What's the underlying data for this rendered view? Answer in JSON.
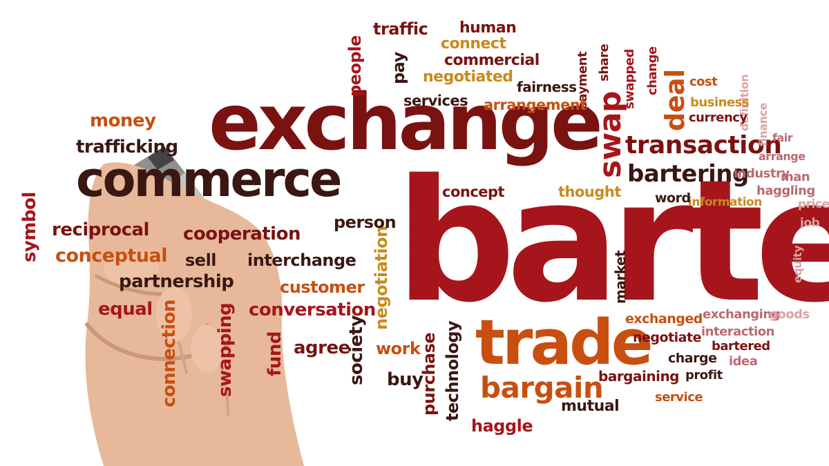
{
  "palette": {
    "dark": "#3a1712",
    "maroon": "#7a1212",
    "red": "#a6151b",
    "orange": "#c84f10",
    "amber": "#c98a1c",
    "rose": "#b86a72",
    "pink": "#d9a3a5",
    "skin": "#e6b99b",
    "pen": "#9a9a9a"
  },
  "hand_image": {
    "subject": "hand holding a marker",
    "marker_cap_icon": "marker-pen"
  },
  "words": [
    {
      "key": "barter",
      "text": "barter",
      "color": "red"
    },
    {
      "key": "exchange",
      "text": "exchange",
      "color": "maroon"
    },
    {
      "key": "commerce",
      "text": "commerce",
      "color": "dark"
    },
    {
      "key": "trade",
      "text": "trade",
      "color": "orange"
    },
    {
      "key": "swap",
      "text": "swap",
      "color": "red"
    },
    {
      "key": "transaction",
      "text": "transaction",
      "color": "maroon"
    },
    {
      "key": "bartering",
      "text": "bartering",
      "color": "dark"
    },
    {
      "key": "deal",
      "text": "deal",
      "color": "orange"
    },
    {
      "key": "bargain",
      "text": "bargain",
      "color": "orange"
    },
    {
      "key": "money",
      "text": "money",
      "color": "orange"
    },
    {
      "key": "trafficking",
      "text": "trafficking",
      "color": "dark"
    },
    {
      "key": "symbol",
      "text": "symbol",
      "color": "red"
    },
    {
      "key": "reciprocal",
      "text": "reciprocal",
      "color": "maroon"
    },
    {
      "key": "conceptual",
      "text": "conceptual",
      "color": "orange"
    },
    {
      "key": "cooperation",
      "text": "cooperation",
      "color": "maroon"
    },
    {
      "key": "sell",
      "text": "sell",
      "color": "dark"
    },
    {
      "key": "interchange",
      "text": "interchange",
      "color": "dark"
    },
    {
      "key": "partnership",
      "text": "partnership",
      "color": "dark"
    },
    {
      "key": "customer",
      "text": "customer",
      "color": "orange"
    },
    {
      "key": "conversation",
      "text": "conversation",
      "color": "red"
    },
    {
      "key": "equal",
      "text": "equal",
      "color": "red"
    },
    {
      "key": "agree",
      "text": "agree",
      "color": "maroon"
    },
    {
      "key": "connection",
      "text": "connection",
      "color": "orange"
    },
    {
      "key": "swapping",
      "text": "swapping",
      "color": "red"
    },
    {
      "key": "fund",
      "text": "fund",
      "color": "red"
    },
    {
      "key": "society",
      "text": "society",
      "color": "dark"
    },
    {
      "key": "negotiation",
      "text": "negotiation",
      "color": "amber"
    },
    {
      "key": "work",
      "text": "work",
      "color": "orange"
    },
    {
      "key": "buy",
      "text": "buy",
      "color": "dark"
    },
    {
      "key": "purchase",
      "text": "purchase",
      "color": "maroon"
    },
    {
      "key": "technology",
      "text": "technology",
      "color": "dark"
    },
    {
      "key": "haggle",
      "text": "haggle",
      "color": "red"
    },
    {
      "key": "mutual",
      "text": "mutual",
      "color": "dark"
    },
    {
      "key": "bargaining",
      "text": "bargaining",
      "color": "maroon"
    },
    {
      "key": "service",
      "text": "service",
      "color": "orange"
    },
    {
      "key": "profit",
      "text": "profit",
      "color": "dark"
    },
    {
      "key": "charge",
      "text": "charge",
      "color": "dark"
    },
    {
      "key": "idea",
      "text": "idea",
      "color": "rose"
    },
    {
      "key": "bartered",
      "text": "bartered",
      "color": "maroon"
    },
    {
      "key": "interaction",
      "text": "interaction",
      "color": "rose"
    },
    {
      "key": "negotiate",
      "text": "negotiate",
      "color": "maroon"
    },
    {
      "key": "exchanged",
      "text": "exchanged",
      "color": "orange"
    },
    {
      "key": "exchanging",
      "text": "exchanging",
      "color": "rose"
    },
    {
      "key": "goods",
      "text": "goods",
      "color": "pink"
    },
    {
      "key": "market",
      "text": "market",
      "color": "dark"
    },
    {
      "key": "equity",
      "text": "equity",
      "color": "pink"
    },
    {
      "key": "job",
      "text": "job",
      "color": "pink"
    },
    {
      "key": "price",
      "text": "price",
      "color": "pink"
    },
    {
      "key": "haggling",
      "text": "haggling",
      "color": "rose"
    },
    {
      "key": "man",
      "text": "man",
      "color": "rose"
    },
    {
      "key": "industry",
      "text": "industry",
      "color": "rose"
    },
    {
      "key": "arrange",
      "text": "arrange",
      "color": "rose"
    },
    {
      "key": "fair",
      "text": "fair",
      "color": "rose"
    },
    {
      "key": "finance",
      "text": "finance",
      "color": "pink"
    },
    {
      "key": "definition",
      "text": "definition",
      "color": "pink"
    },
    {
      "key": "idea2",
      "text": "",
      "color": "pink"
    },
    {
      "key": "currency",
      "text": "currency",
      "color": "maroon"
    },
    {
      "key": "business",
      "text": "business",
      "color": "amber"
    },
    {
      "key": "cost",
      "text": "cost",
      "color": "orange"
    },
    {
      "key": "change",
      "text": "change",
      "color": "red"
    },
    {
      "key": "swapped",
      "text": "swapped",
      "color": "red"
    },
    {
      "key": "share",
      "text": "share",
      "color": "maroon"
    },
    {
      "key": "payment",
      "text": "payment",
      "color": "maroon"
    },
    {
      "key": "information",
      "text": "information",
      "color": "amber"
    },
    {
      "key": "word",
      "text": "word",
      "color": "dark"
    },
    {
      "key": "thought",
      "text": "thought",
      "color": "amber"
    },
    {
      "key": "concept",
      "text": "concept",
      "color": "maroon"
    },
    {
      "key": "person",
      "text": "person",
      "color": "dark"
    },
    {
      "key": "arrangement",
      "text": "arrangement",
      "color": "orange"
    },
    {
      "key": "services",
      "text": "services",
      "color": "dark"
    },
    {
      "key": "fairness",
      "text": "fairness",
      "color": "dark"
    },
    {
      "key": "negotiated",
      "text": "negotiated",
      "color": "amber"
    },
    {
      "key": "commercial",
      "text": "commercial",
      "color": "maroon"
    },
    {
      "key": "connect",
      "text": "connect",
      "color": "amber"
    },
    {
      "key": "human",
      "text": "human",
      "color": "maroon"
    },
    {
      "key": "traffic",
      "text": "traffic",
      "color": "maroon"
    },
    {
      "key": "people",
      "text": "people",
      "color": "red"
    },
    {
      "key": "pay",
      "text": "pay",
      "color": "dark"
    }
  ]
}
